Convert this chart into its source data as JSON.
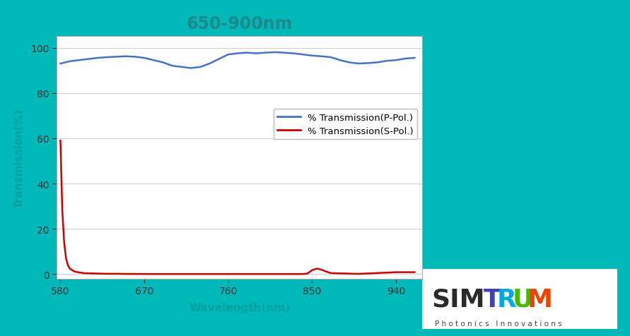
{
  "title": "650-900nm",
  "title_color": "#1a8a8a",
  "title_fontsize": 17,
  "xlabel": "Wavelength(nm)",
  "ylabel": "Transmission(%)",
  "axis_label_color": "#00a0a0",
  "xlim": [
    576,
    968
  ],
  "ylim": [
    -2,
    105
  ],
  "xticks": [
    580,
    670,
    760,
    850,
    940
  ],
  "yticks": [
    0,
    20,
    40,
    60,
    80,
    100
  ],
  "bg_color": "#ffffff",
  "border_color": "#00b8b8",
  "grid_color": "#d0d0d0",
  "p_pol_color": "#4472c4",
  "s_pol_color": "#cc0000",
  "p_pol_label": "% Transmission(P-Pol.)",
  "s_pol_label": "% Transmission(S-Pol.)",
  "p_pol_x": [
    580,
    590,
    600,
    610,
    620,
    630,
    640,
    650,
    660,
    670,
    680,
    690,
    700,
    710,
    720,
    730,
    740,
    750,
    760,
    770,
    780,
    790,
    800,
    810,
    820,
    830,
    840,
    850,
    860,
    870,
    880,
    890,
    900,
    910,
    920,
    930,
    940,
    950,
    960
  ],
  "p_pol_y": [
    93,
    94,
    94.5,
    95,
    95.5,
    95.8,
    96,
    96.2,
    96,
    95.5,
    94.5,
    93.5,
    92,
    91.5,
    91,
    91.5,
    93,
    95,
    97,
    97.5,
    97.8,
    97.5,
    97.8,
    98,
    97.8,
    97.5,
    97,
    96.5,
    96.2,
    95.8,
    94.5,
    93.5,
    93,
    93.2,
    93.5,
    94.2,
    94.5,
    95.2,
    95.5
  ],
  "s_pol_x": [
    580,
    582,
    584,
    586,
    588,
    590,
    595,
    600,
    605,
    610,
    620,
    630,
    640,
    650,
    670,
    700,
    730,
    760,
    800,
    840,
    845,
    850,
    855,
    860,
    865,
    870,
    900,
    940,
    960
  ],
  "s_pol_y": [
    59,
    28,
    14,
    7,
    4,
    2.5,
    1.2,
    0.8,
    0.5,
    0.4,
    0.3,
    0.2,
    0.2,
    0.15,
    0.1,
    0.1,
    0.1,
    0.1,
    0.1,
    0.1,
    0.3,
    1.8,
    2.5,
    2.0,
    1.2,
    0.5,
    0.15,
    0.9,
    0.9
  ],
  "simtrum_letters": [
    "S",
    "I",
    "M",
    "T",
    "R",
    "U",
    "M"
  ],
  "simtrum_colors": [
    "#333333",
    "#333333",
    "#333333",
    "#4444cc",
    "#00aadd",
    "#44bb44",
    "#ff6600"
  ],
  "sim_color": "#333333",
  "T_color": "#5555cc",
  "R_color": "#00aaee",
  "U_color": "#55bb00",
  "M_color": "#ff5500"
}
